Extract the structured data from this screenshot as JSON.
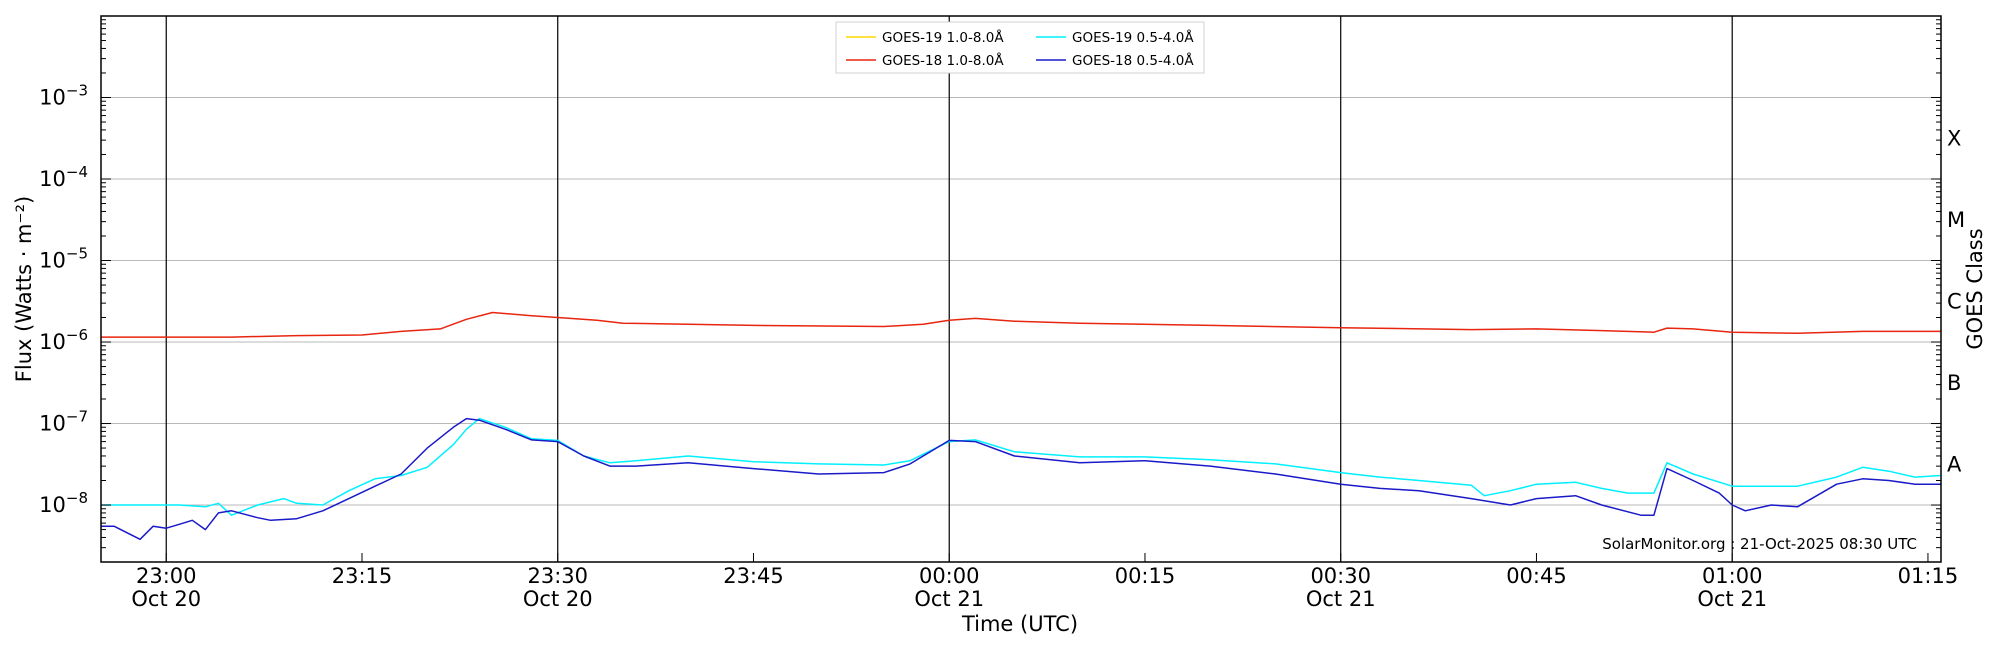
{
  "chart_data": {
    "type": "line",
    "ylabel": "Flux (Watts · m⁻²)",
    "xlabel": "Time (UTC)",
    "right_label": "GOES Class",
    "y_scale": "log",
    "ylim": [
      2e-09,
      0.01
    ],
    "x_range": [
      "2025-10-20T22:55",
      "2025-10-21T01:16"
    ],
    "grid": "horizontal lines at each decade",
    "legend_position": "top-center",
    "credit": "SolarMonitor.org : 21-Oct-2025 08:30 UTC",
    "y_ticks": [
      {
        "value": 1e-08,
        "base": "10",
        "exp": "−8"
      },
      {
        "value": 1e-07,
        "base": "10",
        "exp": "−7"
      },
      {
        "value": 1e-06,
        "base": "10",
        "exp": "−6"
      },
      {
        "value": 1e-05,
        "base": "10",
        "exp": "−5"
      },
      {
        "value": 0.0001,
        "base": "10",
        "exp": "−4"
      },
      {
        "value": 0.001,
        "base": "10",
        "exp": "−3"
      }
    ],
    "x_ticks": [
      {
        "time": "2025-10-20T23:00",
        "line1": "23:00",
        "line2": "Oct 20",
        "day_line": true
      },
      {
        "time": "2025-10-20T23:15",
        "line1": "23:15",
        "line2": "",
        "day_line": false
      },
      {
        "time": "2025-10-20T23:30",
        "line1": "23:30",
        "line2": "Oct 20",
        "day_line": true
      },
      {
        "time": "2025-10-20T23:45",
        "line1": "23:45",
        "line2": "",
        "day_line": false
      },
      {
        "time": "2025-10-21T00:00",
        "line1": "00:00",
        "line2": "Oct 21",
        "day_line": true
      },
      {
        "time": "2025-10-21T00:15",
        "line1": "00:15",
        "line2": "",
        "day_line": false
      },
      {
        "time": "2025-10-21T00:30",
        "line1": "00:30",
        "line2": "Oct 21",
        "day_line": true
      },
      {
        "time": "2025-10-21T00:45",
        "line1": "00:45",
        "line2": "",
        "day_line": false
      },
      {
        "time": "2025-10-21T01:00",
        "line1": "01:00",
        "line2": "Oct 21",
        "day_line": true
      },
      {
        "time": "2025-10-21T01:15",
        "line1": "01:15",
        "line2": "",
        "day_line": false
      }
    ],
    "goes_classes": [
      {
        "label": "A",
        "value": 1e-08
      },
      {
        "label": "B",
        "value": 1e-07
      },
      {
        "label": "C",
        "value": 1e-06
      },
      {
        "label": "M",
        "value": 1e-05
      },
      {
        "label": "X",
        "value": 0.0001
      }
    ],
    "series": [
      {
        "name": "GOES-19 1.0-8.0Å",
        "color": "#ffd700",
        "x": [],
        "values": []
      },
      {
        "name": "GOES-18 1.0-8.0Å",
        "color": "#e8250f",
        "x": [
          "2025-10-20T22:55",
          "2025-10-20T23:00",
          "2025-10-20T23:05",
          "2025-10-20T23:10",
          "2025-10-20T23:15",
          "2025-10-20T23:18",
          "2025-10-20T23:21",
          "2025-10-20T23:23",
          "2025-10-20T23:25",
          "2025-10-20T23:28",
          "2025-10-20T23:30",
          "2025-10-20T23:33",
          "2025-10-20T23:35",
          "2025-10-20T23:40",
          "2025-10-20T23:45",
          "2025-10-20T23:55",
          "2025-10-20T23:58",
          "2025-10-21T00:00",
          "2025-10-21T00:02",
          "2025-10-21T00:05",
          "2025-10-21T00:10",
          "2025-10-21T00:20",
          "2025-10-21T00:30",
          "2025-10-21T00:40",
          "2025-10-21T00:45",
          "2025-10-21T00:50",
          "2025-10-21T00:54",
          "2025-10-21T00:55",
          "2025-10-21T00:57",
          "2025-10-21T01:00",
          "2025-10-21T01:05",
          "2025-10-21T01:10",
          "2025-10-21T01:16"
        ],
        "values": [
          1.15e-06,
          1.15e-06,
          1.15e-06,
          1.2e-06,
          1.22e-06,
          1.35e-06,
          1.45e-06,
          1.9e-06,
          2.3e-06,
          2.1e-06,
          2e-06,
          1.85e-06,
          1.7e-06,
          1.65e-06,
          1.6e-06,
          1.55e-06,
          1.65e-06,
          1.85e-06,
          1.95e-06,
          1.8e-06,
          1.7e-06,
          1.6e-06,
          1.5e-06,
          1.42e-06,
          1.45e-06,
          1.38e-06,
          1.32e-06,
          1.48e-06,
          1.45e-06,
          1.32e-06,
          1.28e-06,
          1.35e-06,
          1.35e-06
        ]
      },
      {
        "name": "GOES-19 0.5-4.0Å",
        "color": "#00f0ff",
        "x": [
          "2025-10-20T22:55",
          "2025-10-20T22:57",
          "2025-10-20T22:59",
          "2025-10-20T23:01",
          "2025-10-20T23:03",
          "2025-10-20T23:04",
          "2025-10-20T23:05",
          "2025-10-20T23:07",
          "2025-10-20T23:09",
          "2025-10-20T23:10",
          "2025-10-20T23:12",
          "2025-10-20T23:14",
          "2025-10-20T23:16",
          "2025-10-20T23:18",
          "2025-10-20T23:20",
          "2025-10-20T23:22",
          "2025-10-20T23:23",
          "2025-10-20T23:24",
          "2025-10-20T23:26",
          "2025-10-20T23:28",
          "2025-10-20T23:30",
          "2025-10-20T23:32",
          "2025-10-20T23:34",
          "2025-10-20T23:36",
          "2025-10-20T23:40",
          "2025-10-20T23:45",
          "2025-10-20T23:50",
          "2025-10-20T23:55",
          "2025-10-20T23:57",
          "2025-10-21T00:00",
          "2025-10-21T00:02",
          "2025-10-21T00:05",
          "2025-10-21T00:10",
          "2025-10-21T00:15",
          "2025-10-21T00:20",
          "2025-10-21T00:25",
          "2025-10-21T00:30",
          "2025-10-21T00:33",
          "2025-10-21T00:36",
          "2025-10-21T00:40",
          "2025-10-21T00:41",
          "2025-10-21T00:43",
          "2025-10-21T00:45",
          "2025-10-21T00:48",
          "2025-10-21T00:50",
          "2025-10-21T00:52",
          "2025-10-21T00:54",
          "2025-10-21T00:55",
          "2025-10-21T00:57",
          "2025-10-21T01:00",
          "2025-10-21T01:05",
          "2025-10-21T01:08",
          "2025-10-21T01:10",
          "2025-10-21T01:12",
          "2025-10-21T01:14",
          "2025-10-21T01:16"
        ],
        "values": [
          1e-08,
          1e-08,
          1e-08,
          1e-08,
          9.5e-09,
          1.05e-08,
          7.5e-09,
          1e-08,
          1.2e-08,
          1.05e-08,
          1e-08,
          1.5e-08,
          2.1e-08,
          2.3e-08,
          2.9e-08,
          5.5e-08,
          8.5e-08,
          1.15e-07,
          9e-08,
          6.5e-08,
          6.2e-08,
          4e-08,
          3.3e-08,
          3.5e-08,
          4e-08,
          3.4e-08,
          3.2e-08,
          3.1e-08,
          3.5e-08,
          6e-08,
          6.3e-08,
          4.5e-08,
          3.9e-08,
          3.9e-08,
          3.6e-08,
          3.2e-08,
          2.5e-08,
          2.2e-08,
          2e-08,
          1.75e-08,
          1.3e-08,
          1.5e-08,
          1.8e-08,
          1.9e-08,
          1.6e-08,
          1.4e-08,
          1.4e-08,
          3.3e-08,
          2.4e-08,
          1.7e-08,
          1.7e-08,
          2.2e-08,
          2.9e-08,
          2.6e-08,
          2.2e-08,
          2.3e-08
        ]
      },
      {
        "name": "GOES-18 0.5-4.0Å",
        "color": "#1a1ac8",
        "x": [
          "2025-10-20T22:55",
          "2025-10-20T22:56",
          "2025-10-20T22:58",
          "2025-10-20T22:59",
          "2025-10-20T23:00",
          "2025-10-20T23:01",
          "2025-10-20T23:02",
          "2025-10-20T23:03",
          "2025-10-20T23:04",
          "2025-10-20T23:05",
          "2025-10-20T23:07",
          "2025-10-20T23:08",
          "2025-10-20T23:10",
          "2025-10-20T23:12",
          "2025-10-20T23:14",
          "2025-10-20T23:16",
          "2025-10-20T23:18",
          "2025-10-20T23:20",
          "2025-10-20T23:22",
          "2025-10-20T23:23",
          "2025-10-20T23:24",
          "2025-10-20T23:26",
          "2025-10-20T23:28",
          "2025-10-20T23:30",
          "2025-10-20T23:32",
          "2025-10-20T23:34",
          "2025-10-20T23:36",
          "2025-10-20T23:40",
          "2025-10-20T23:45",
          "2025-10-20T23:50",
          "2025-10-20T23:55",
          "2025-10-20T23:57",
          "2025-10-21T00:00",
          "2025-10-21T00:02",
          "2025-10-21T00:05",
          "2025-10-21T00:10",
          "2025-10-21T00:15",
          "2025-10-21T00:20",
          "2025-10-21T00:25",
          "2025-10-21T00:30",
          "2025-10-21T00:33",
          "2025-10-21T00:36",
          "2025-10-21T00:40",
          "2025-10-21T00:43",
          "2025-10-21T00:45",
          "2025-10-21T00:48",
          "2025-10-21T00:50",
          "2025-10-21T00:53",
          "2025-10-21T00:54",
          "2025-10-21T00:55",
          "2025-10-21T00:57",
          "2025-10-21T00:59",
          "2025-10-21T01:00",
          "2025-10-21T01:01",
          "2025-10-21T01:03",
          "2025-10-21T01:05",
          "2025-10-21T01:08",
          "2025-10-21T01:10",
          "2025-10-21T01:12",
          "2025-10-21T01:14",
          "2025-10-21T01:16"
        ],
        "values": [
          5.5e-09,
          5.5e-09,
          3.8e-09,
          5.5e-09,
          5.2e-09,
          5.8e-09,
          6.5e-09,
          5e-09,
          8e-09,
          8.5e-09,
          7e-09,
          6.5e-09,
          6.8e-09,
          8.5e-09,
          1.2e-08,
          1.7e-08,
          2.4e-08,
          5e-08,
          9e-08,
          1.15e-07,
          1.1e-07,
          8.5e-08,
          6.3e-08,
          6e-08,
          4e-08,
          3e-08,
          3e-08,
          3.3e-08,
          2.8e-08,
          2.4e-08,
          2.5e-08,
          3.2e-08,
          6.2e-08,
          6e-08,
          4e-08,
          3.3e-08,
          3.5e-08,
          3e-08,
          2.4e-08,
          1.8e-08,
          1.6e-08,
          1.5e-08,
          1.2e-08,
          1e-08,
          1.2e-08,
          1.3e-08,
          1e-08,
          7.5e-09,
          7.5e-09,
          2.8e-08,
          2e-08,
          1.4e-08,
          1e-08,
          8.5e-09,
          1e-08,
          9.5e-09,
          1.8e-08,
          2.1e-08,
          2e-08,
          1.8e-08,
          1.8e-08
        ]
      }
    ]
  }
}
